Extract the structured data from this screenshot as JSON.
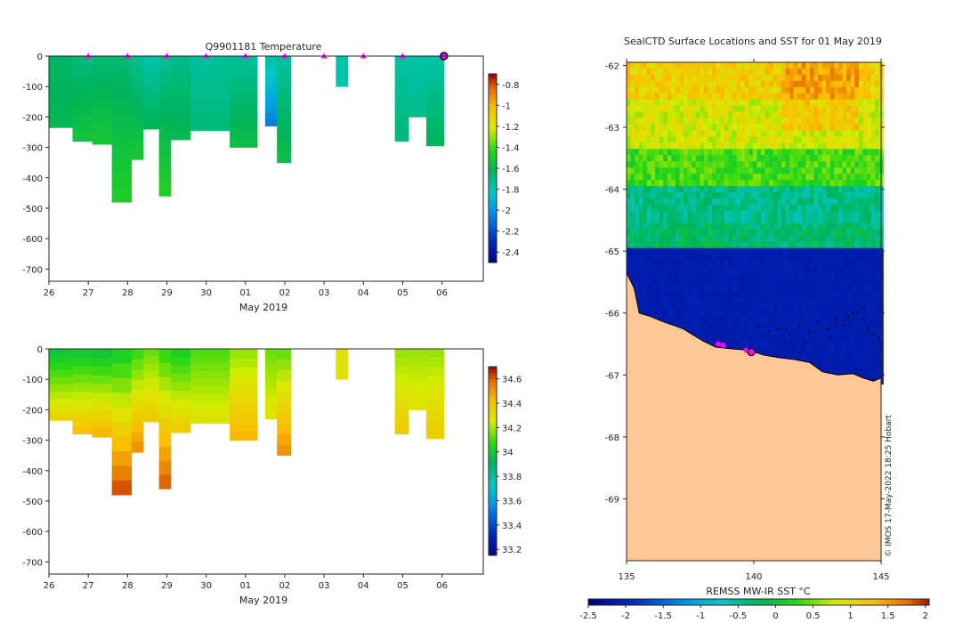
{
  "chart_data": [
    {
      "type": "heatmap",
      "title": "Q9901181  Temperature",
      "xlabel": "May 2019",
      "ylabel": "",
      "x_ticks": [
        "26",
        "27",
        "28",
        "29",
        "30",
        "01",
        "02",
        "03",
        "04",
        "05",
        "06"
      ],
      "y_ticks": [
        0,
        -100,
        -200,
        -300,
        -400,
        -500,
        -600,
        -700
      ],
      "ylim": [
        -740,
        0
      ],
      "xlim": [
        26,
        37.05
      ],
      "colorbar_ticks": [
        "-0.8",
        "-1",
        "-1.2",
        "-1.4",
        "-1.6",
        "-1.8",
        "-2",
        "-2.2",
        "-2.4"
      ],
      "colorbar_range": [
        -2.5,
        -0.7
      ],
      "surface_markers_day": [
        27,
        28,
        29,
        30,
        31,
        32,
        33,
        34,
        35
      ],
      "profiles": [
        {
          "x0": 26.0,
          "x1": 26.6,
          "bottom": -235,
          "value": -1.62,
          "deep_value": -1.58
        },
        {
          "x0": 26.6,
          "x1": 27.1,
          "bottom": -280,
          "value": -1.66,
          "deep_value": -1.52
        },
        {
          "x0": 27.1,
          "x1": 27.6,
          "bottom": -290,
          "value": -1.65,
          "deep_value": -1.5
        },
        {
          "x0": 27.6,
          "x1": 28.1,
          "bottom": -480,
          "value": -1.64,
          "deep_value": -1.47
        },
        {
          "x0": 28.1,
          "x1": 28.4,
          "bottom": -340,
          "value": -1.7,
          "deep_value": -1.5
        },
        {
          "x0": 28.4,
          "x1": 28.8,
          "bottom": -240,
          "value": -1.75,
          "deep_value": -1.6
        },
        {
          "x0": 28.8,
          "x1": 29.1,
          "bottom": -460,
          "value": -1.7,
          "deep_value": -1.46
        },
        {
          "x0": 29.1,
          "x1": 29.6,
          "bottom": -275,
          "value": -1.68,
          "deep_value": -1.58
        },
        {
          "x0": 29.6,
          "x1": 30.1,
          "bottom": -245,
          "value": -1.73,
          "deep_value": -1.66
        },
        {
          "x0": 30.1,
          "x1": 30.6,
          "bottom": -245,
          "value": -1.72,
          "deep_value": -1.66
        },
        {
          "x0": 30.6,
          "x1": 31.3,
          "bottom": -300,
          "value": -1.72,
          "deep_value": -1.55
        },
        {
          "x0": 31.5,
          "x1": 31.8,
          "bottom": -230,
          "value": -1.74,
          "deep_value": -2.05
        },
        {
          "x0": 31.8,
          "x1": 32.15,
          "bottom": -350,
          "value": -1.73,
          "deep_value": -1.55
        },
        {
          "x0": 33.3,
          "x1": 33.6,
          "bottom": -100,
          "value": -1.76,
          "deep_value": -1.76
        },
        {
          "x0": 34.8,
          "x1": 35.15,
          "bottom": -280,
          "value": -1.74,
          "deep_value": -1.66
        },
        {
          "x0": 35.15,
          "x1": 35.6,
          "bottom": -200,
          "value": -1.75,
          "deep_value": -1.7
        },
        {
          "x0": 35.6,
          "x1": 36.05,
          "bottom": -295,
          "value": -1.75,
          "deep_value": -1.6
        }
      ]
    },
    {
      "type": "heatmap",
      "title": "",
      "xlabel": "May 2019",
      "ylabel": "",
      "x_ticks": [
        "26",
        "27",
        "28",
        "29",
        "30",
        "01",
        "02",
        "03",
        "04",
        "05",
        "06"
      ],
      "y_ticks": [
        0,
        -100,
        -200,
        -300,
        -400,
        -500,
        -600,
        -700
      ],
      "ylim": [
        -740,
        0
      ],
      "xlim": [
        26,
        37.05
      ],
      "colorbar_ticks": [
        "34.6",
        "34.4",
        "34.2",
        "34",
        "33.8",
        "33.6",
        "33.4",
        "33.2"
      ],
      "colorbar_range": [
        33.15,
        34.7
      ],
      "profiles": [
        {
          "x0": 26.0,
          "x1": 26.6,
          "bottom": -235,
          "value": 34.0,
          "deep_value": 34.35
        },
        {
          "x0": 26.6,
          "x1": 27.1,
          "bottom": -280,
          "value": 34.02,
          "deep_value": 34.42
        },
        {
          "x0": 27.1,
          "x1": 27.6,
          "bottom": -290,
          "value": 34.0,
          "deep_value": 34.45
        },
        {
          "x0": 27.6,
          "x1": 28.1,
          "bottom": -480,
          "value": 34.05,
          "deep_value": 34.62
        },
        {
          "x0": 28.1,
          "x1": 28.4,
          "bottom": -340,
          "value": 34.1,
          "deep_value": 34.52
        },
        {
          "x0": 28.4,
          "x1": 28.8,
          "bottom": -240,
          "value": 34.15,
          "deep_value": 34.38
        },
        {
          "x0": 28.8,
          "x1": 29.1,
          "bottom": -460,
          "value": 34.1,
          "deep_value": 34.6
        },
        {
          "x0": 29.1,
          "x1": 29.6,
          "bottom": -275,
          "value": 34.05,
          "deep_value": 34.38
        },
        {
          "x0": 29.6,
          "x1": 30.1,
          "bottom": -245,
          "value": 34.12,
          "deep_value": 34.3
        },
        {
          "x0": 30.1,
          "x1": 30.6,
          "bottom": -245,
          "value": 34.12,
          "deep_value": 34.3
        },
        {
          "x0": 30.6,
          "x1": 31.3,
          "bottom": -300,
          "value": 34.2,
          "deep_value": 34.45
        },
        {
          "x0": 31.5,
          "x1": 31.8,
          "bottom": -230,
          "value": 34.15,
          "deep_value": 34.3
        },
        {
          "x0": 31.8,
          "x1": 32.15,
          "bottom": -350,
          "value": 34.15,
          "deep_value": 34.52
        },
        {
          "x0": 33.3,
          "x1": 33.6,
          "bottom": -100,
          "value": 34.3,
          "deep_value": 34.3
        },
        {
          "x0": 34.8,
          "x1": 35.15,
          "bottom": -280,
          "value": 34.2,
          "deep_value": 34.38
        },
        {
          "x0": 35.15,
          "x1": 35.6,
          "bottom": -200,
          "value": 34.2,
          "deep_value": 34.3
        },
        {
          "x0": 35.6,
          "x1": 36.05,
          "bottom": -295,
          "value": 34.2,
          "deep_value": 34.38
        }
      ]
    },
    {
      "type": "heatmap",
      "title": "SealCTD Surface Locations and SST for 01 May 2019",
      "xlabel": "",
      "ylabel": "",
      "x_ticks": [
        "135",
        "140",
        "145"
      ],
      "y_ticks": [
        "-62",
        "-63",
        "-64",
        "-65",
        "-66",
        "-67",
        "-68",
        "-69"
      ],
      "xlim": [
        135,
        145
      ],
      "ylim": [
        -70,
        -61.95
      ],
      "colorbar_label": "REMSS MW-IR SST °C",
      "colorbar_ticks": [
        "-2.5",
        "-2",
        "-1.5",
        "-1",
        "-0.5",
        "0",
        "0.5",
        "1",
        "1.5",
        "2"
      ],
      "colorbar_range": [
        -2.5,
        2.05
      ],
      "credit": "© IMOS 17-May-2022 18:25 Hobart",
      "sst_bands": [
        {
          "lat_top": -61.95,
          "lat_bottom": -62.5,
          "value": 1.1
        },
        {
          "lat_top": -62.5,
          "lat_bottom": -63.3,
          "value": 0.8
        },
        {
          "lat_top": -63.3,
          "lat_bottom": -63.9,
          "value": 0.3
        },
        {
          "lat_top": -63.9,
          "lat_bottom": -64.5,
          "value": -0.45
        },
        {
          "lat_top": -64.5,
          "lat_bottom": -64.9,
          "value": -0.3
        },
        {
          "lat_top": -64.9,
          "lat_bottom": -67.05,
          "value": -2.1
        }
      ],
      "coast_lat_by_lon": [
        [
          135.0,
          -65.35
        ],
        [
          135.3,
          -65.6
        ],
        [
          135.5,
          -66.0
        ],
        [
          135.9,
          -66.05
        ],
        [
          136.5,
          -66.15
        ],
        [
          137.2,
          -66.25
        ],
        [
          137.6,
          -66.35
        ],
        [
          138.0,
          -66.45
        ],
        [
          138.5,
          -66.55
        ],
        [
          139.2,
          -66.58
        ],
        [
          139.8,
          -66.6
        ],
        [
          140.4,
          -66.68
        ],
        [
          141.0,
          -66.72
        ],
        [
          141.6,
          -66.75
        ],
        [
          142.2,
          -66.8
        ],
        [
          142.7,
          -66.95
        ],
        [
          143.3,
          -67.0
        ],
        [
          143.9,
          -66.98
        ],
        [
          144.3,
          -67.05
        ],
        [
          144.7,
          -67.1
        ],
        [
          145.0,
          -67.05
        ]
      ],
      "seal_positions": [
        [
          138.6,
          -66.5
        ],
        [
          138.8,
          -66.52
        ],
        [
          139.7,
          -66.6
        ],
        [
          139.9,
          -66.63
        ]
      ],
      "track_points": [
        [
          140.2,
          -66.2
        ],
        [
          140.6,
          -66.3
        ],
        [
          141.0,
          -66.25
        ],
        [
          141.4,
          -66.35
        ],
        [
          141.8,
          -66.2
        ],
        [
          142.2,
          -66.3
        ],
        [
          142.5,
          -66.15
        ],
        [
          142.9,
          -66.25
        ],
        [
          143.2,
          -66.1
        ],
        [
          143.5,
          -66.2
        ],
        [
          143.7,
          -66.05
        ],
        [
          143.9,
          -66.0
        ],
        [
          144.1,
          -65.98
        ],
        [
          144.3,
          -66.1
        ],
        [
          144.5,
          -66.25
        ],
        [
          144.7,
          -66.35
        ],
        [
          144.9,
          -66.4
        ],
        [
          143.0,
          -66.4
        ],
        [
          142.0,
          -66.45
        ],
        [
          141.2,
          -66.5
        ]
      ]
    }
  ]
}
